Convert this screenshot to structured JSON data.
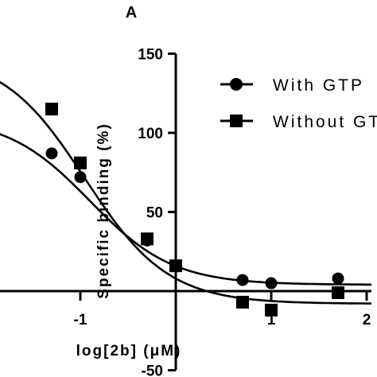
{
  "panel_label": "A",
  "chart_data": {
    "type": "scatter",
    "xlabel": "log[2b] (μM)",
    "ylabel": "Specific binding (%)",
    "xlim": [
      -1.85,
      2.05
    ],
    "ylim": [
      -50,
      150
    ],
    "x_ticks": [
      {
        "value": -1,
        "label": "-1"
      },
      {
        "value": 0,
        "label": ""
      },
      {
        "value": 1,
        "label": "1"
      },
      {
        "value": 2,
        "label": "2"
      }
    ],
    "y_ticks": [
      {
        "value": -50,
        "label": "-50"
      },
      {
        "value": 0,
        "label": ""
      },
      {
        "value": 50,
        "label": "50"
      },
      {
        "value": 100,
        "label": "100"
      },
      {
        "value": 150,
        "label": "150"
      }
    ],
    "legend_position": "top-right",
    "series": [
      {
        "name": "With GTP",
        "marker": "circle",
        "x": [
          -1.3,
          -1.0,
          -0.3,
          0.0,
          0.7,
          1.0,
          1.7
        ],
        "y": [
          87,
          72,
          32,
          16,
          7,
          5,
          8
        ],
        "fit": {
          "bottom": 4,
          "top": 110,
          "log_ec50": -0.9,
          "hill": -1
        }
      },
      {
        "name": "Without GTP",
        "marker": "square",
        "x": [
          -1.3,
          -1.0,
          -0.3,
          0.0,
          0.7,
          1.0,
          1.7
        ],
        "y": [
          115,
          81,
          33,
          16,
          -7,
          -12,
          -1
        ],
        "fit": {
          "bottom": -8,
          "top": 150,
          "log_ec50": -0.95,
          "hill": -1
        }
      }
    ]
  }
}
